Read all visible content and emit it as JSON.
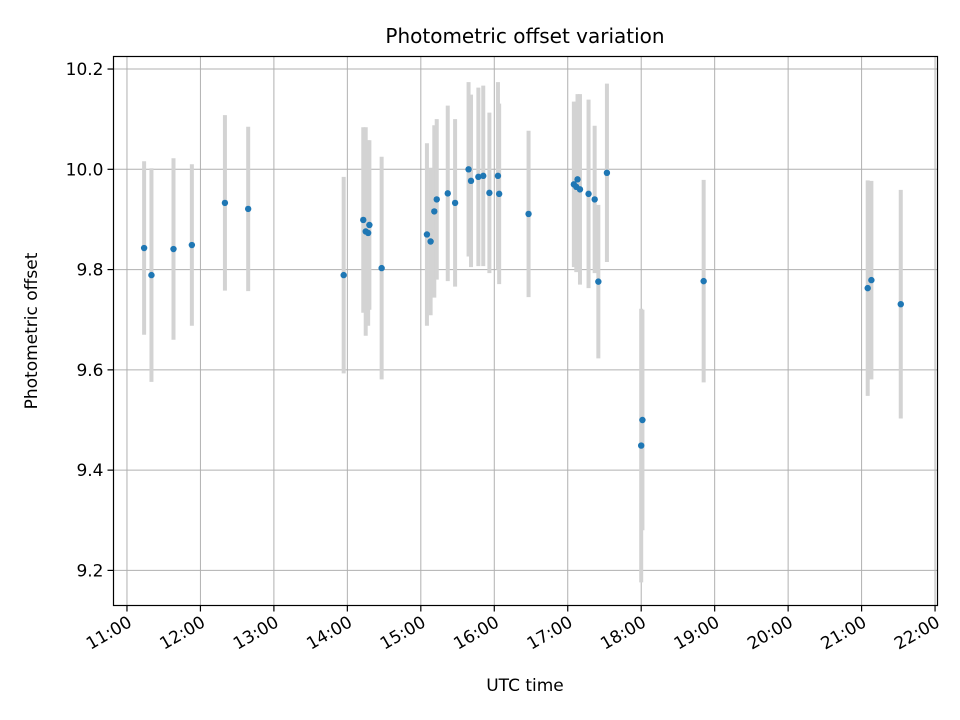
{
  "chart_data": {
    "type": "scatter",
    "title": "Photometric offset variation",
    "xlabel": "UTC time",
    "ylabel": "Photometric offset",
    "x_tick_labels": [
      "11:00",
      "12:00",
      "13:00",
      "14:00",
      "15:00",
      "16:00",
      "17:00",
      "18:00",
      "19:00",
      "20:00",
      "21:00",
      "22:00"
    ],
    "y_ticks": [
      9.2,
      9.4,
      9.6,
      9.8,
      10.0,
      10.2
    ],
    "y_tick_labels": [
      "9.2",
      "9.4",
      "9.6",
      "9.8",
      "10.0",
      "10.2"
    ],
    "xlim": [
      "10:49",
      "22:02"
    ],
    "ylim": [
      9.13,
      10.225
    ],
    "grid": true,
    "colors": {
      "point": "#1f77b4",
      "errorbar": "#d3d3d3",
      "grid": "#b0b0b0"
    },
    "points": [
      {
        "x": "11:14",
        "y": 9.843,
        "err": 0.173
      },
      {
        "x": "11:20",
        "y": 9.789,
        "err": 0.213
      },
      {
        "x": "11:38",
        "y": 9.841,
        "err": 0.181
      },
      {
        "x": "11:53",
        "y": 9.849,
        "err": 0.161
      },
      {
        "x": "12:20",
        "y": 9.933,
        "err": 0.175
      },
      {
        "x": "12:39",
        "y": 9.921,
        "err": 0.164
      },
      {
        "x": "13:57",
        "y": 9.789,
        "err": 0.196
      },
      {
        "x": "14:13",
        "y": 9.899,
        "err": 0.185
      },
      {
        "x": "14:15",
        "y": 9.876,
        "err": 0.208
      },
      {
        "x": "14:17",
        "y": 9.873,
        "err": 0.185
      },
      {
        "x": "14:18",
        "y": 9.889,
        "err": 0.169
      },
      {
        "x": "14:28",
        "y": 9.803,
        "err": 0.222
      },
      {
        "x": "15:05",
        "y": 9.87,
        "err": 0.182
      },
      {
        "x": "15:08",
        "y": 9.856,
        "err": 0.147
      },
      {
        "x": "15:11",
        "y": 9.916,
        "err": 0.172
      },
      {
        "x": "15:13",
        "y": 9.94,
        "err": 0.16
      },
      {
        "x": "15:22",
        "y": 9.952,
        "err": 0.175
      },
      {
        "x": "15:28",
        "y": 9.933,
        "err": 0.167
      },
      {
        "x": "15:39",
        "y": 10.0,
        "err": 0.174
      },
      {
        "x": "15:41",
        "y": 9.977,
        "err": 0.172
      },
      {
        "x": "15:47",
        "y": 9.985,
        "err": 0.178
      },
      {
        "x": "15:51",
        "y": 9.987,
        "err": 0.18
      },
      {
        "x": "15:56",
        "y": 9.953,
        "err": 0.16
      },
      {
        "x": "16:03",
        "y": 9.987,
        "err": 0.187
      },
      {
        "x": "16:04",
        "y": 9.951,
        "err": 0.18
      },
      {
        "x": "16:28",
        "y": 9.911,
        "err": 0.166
      },
      {
        "x": "17:05",
        "y": 9.97,
        "err": 0.165
      },
      {
        "x": "17:07",
        "y": 9.965,
        "err": 0.17
      },
      {
        "x": "17:08",
        "y": 9.98,
        "err": 0.17
      },
      {
        "x": "17:10",
        "y": 9.96,
        "err": 0.19
      },
      {
        "x": "17:17",
        "y": 9.951,
        "err": 0.188
      },
      {
        "x": "17:22",
        "y": 9.94,
        "err": 0.147
      },
      {
        "x": "17:25",
        "y": 9.776,
        "err": 0.153
      },
      {
        "x": "17:32",
        "y": 9.993,
        "err": 0.178
      },
      {
        "x": "18:00",
        "y": 9.449,
        "err": 0.273
      },
      {
        "x": "18:01",
        "y": 9.5,
        "err": 0.22
      },
      {
        "x": "18:51",
        "y": 9.777,
        "err": 0.202
      },
      {
        "x": "21:05",
        "y": 9.763,
        "err": 0.215
      },
      {
        "x": "21:08",
        "y": 9.779,
        "err": 0.198
      },
      {
        "x": "21:32",
        "y": 9.731,
        "err": 0.228
      }
    ]
  }
}
